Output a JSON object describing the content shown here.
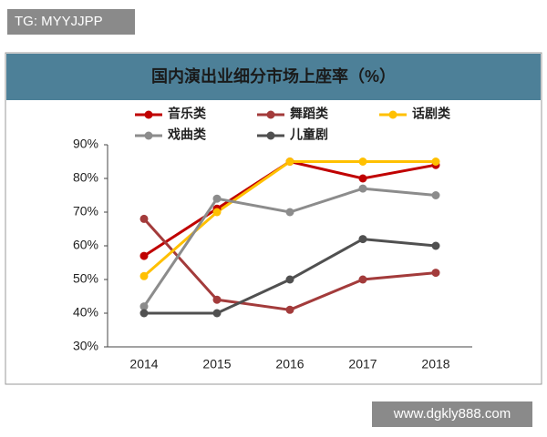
{
  "chart_data": {
    "type": "line",
    "title": "国内演出业细分市场上座率（%）",
    "categories": [
      "2014",
      "2015",
      "2016",
      "2017",
      "2018"
    ],
    "series": [
      {
        "name": "音乐类",
        "color": "#c00000",
        "values": [
          57,
          71,
          85,
          80,
          84
        ]
      },
      {
        "name": "舞蹈类",
        "color": "#a33b3b",
        "values": [
          68,
          44,
          41,
          50,
          52
        ]
      },
      {
        "name": "话剧类",
        "color": "#ffc000",
        "values": [
          51,
          70,
          85,
          85,
          85
        ]
      },
      {
        "name": "戏曲类",
        "color": "#8c8c8c",
        "values": [
          42,
          74,
          70,
          77,
          75
        ]
      },
      {
        "name": "儿童剧",
        "color": "#505050",
        "values": [
          40,
          40,
          50,
          62,
          60
        ]
      }
    ],
    "ylim": [
      30,
      90
    ],
    "yticks": [
      {
        "value": 30,
        "label": "30%"
      },
      {
        "value": 40,
        "label": "40%"
      },
      {
        "value": 50,
        "label": "50%"
      },
      {
        "value": 60,
        "label": "60%"
      },
      {
        "value": 70,
        "label": "70%"
      },
      {
        "value": 80,
        "label": "80%"
      },
      {
        "value": 90,
        "label": "90%"
      }
    ],
    "grid": false,
    "legend": "top"
  },
  "watermarks": [
    "TG: MYYJJPP",
    "www.dgkly888.com"
  ]
}
